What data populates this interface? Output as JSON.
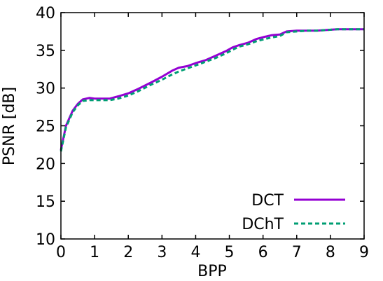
{
  "chart_data": {
    "type": "line",
    "title": "",
    "xlabel": "BPP",
    "ylabel": "PSNR [dB]",
    "xlim": [
      0,
      9
    ],
    "ylim": [
      10,
      40
    ],
    "xticks": [
      0,
      1,
      2,
      3,
      4,
      5,
      6,
      7,
      8,
      9
    ],
    "yticks": [
      10,
      15,
      20,
      25,
      30,
      35,
      40
    ],
    "grid": false,
    "legend_position": "bottom-right",
    "series": [
      {
        "name": "DCT",
        "color": "#9400d3",
        "dash": "solid",
        "x": [
          0,
          0.15,
          0.35,
          0.5,
          0.65,
          0.85,
          1.0,
          1.2,
          1.45,
          1.7,
          2.0,
          2.3,
          2.7,
          3.0,
          3.3,
          3.5,
          3.75,
          4.0,
          4.3,
          4.6,
          4.9,
          5.1,
          5.3,
          5.55,
          5.8,
          6.05,
          6.25,
          6.5,
          6.7,
          7.0,
          7.3,
          7.6,
          7.9,
          8.2,
          8.5,
          8.8,
          9.0
        ],
        "y": [
          21.8,
          25.0,
          27.0,
          27.9,
          28.5,
          28.7,
          28.6,
          28.6,
          28.6,
          28.9,
          29.3,
          29.9,
          30.8,
          31.5,
          32.3,
          32.7,
          32.9,
          33.3,
          33.7,
          34.3,
          34.9,
          35.4,
          35.7,
          36.0,
          36.5,
          36.8,
          37.0,
          37.1,
          37.5,
          37.6,
          37.6,
          37.6,
          37.7,
          37.8,
          37.8,
          37.8,
          37.8
        ]
      },
      {
        "name": "DChT",
        "color": "#009e73",
        "dash": "dashed",
        "x": [
          0,
          0.15,
          0.35,
          0.5,
          0.65,
          0.85,
          1.0,
          1.2,
          1.45,
          1.7,
          2.0,
          2.3,
          2.7,
          3.0,
          3.3,
          3.5,
          3.75,
          4.0,
          4.3,
          4.6,
          4.9,
          5.1,
          5.3,
          5.55,
          5.8,
          6.05,
          6.25,
          6.5,
          6.7,
          7.0,
          7.3,
          7.6,
          7.9,
          8.2,
          8.5,
          8.8,
          9.0
        ],
        "y": [
          21.6,
          24.8,
          26.8,
          27.7,
          28.3,
          28.4,
          28.4,
          28.4,
          28.4,
          28.6,
          29.0,
          29.6,
          30.5,
          31.1,
          31.8,
          32.2,
          32.6,
          33.0,
          33.5,
          34.0,
          34.6,
          35.1,
          35.5,
          35.8,
          36.2,
          36.5,
          36.7,
          36.9,
          37.4,
          37.5,
          37.6,
          37.6,
          37.7,
          37.8,
          37.8,
          37.8,
          37.8
        ]
      }
    ]
  }
}
